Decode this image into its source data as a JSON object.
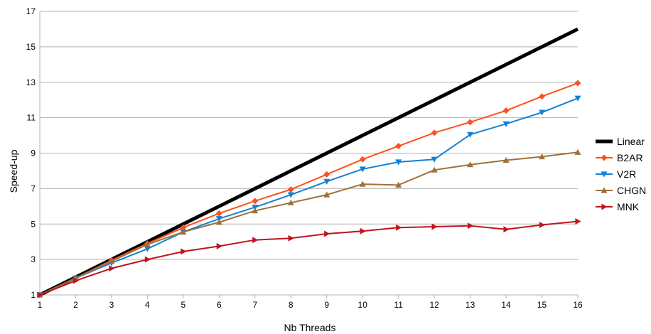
{
  "chart_data": {
    "type": "line",
    "title": "",
    "xlabel": "Nb Threads",
    "ylabel": "Speed-up",
    "x": [
      1,
      2,
      3,
      4,
      5,
      6,
      7,
      8,
      9,
      10,
      11,
      12,
      13,
      14,
      15,
      16
    ],
    "xlim": [
      1,
      16
    ],
    "ylim": [
      1,
      17
    ],
    "yticks": [
      1,
      3,
      5,
      7,
      9,
      11,
      13,
      15,
      17
    ],
    "grid": "horizontal",
    "legend_position": "right",
    "series": [
      {
        "name": "Linear",
        "color": "#000000",
        "marker": "none",
        "values": [
          1,
          2,
          3,
          4,
          5,
          6,
          7,
          8,
          9,
          10,
          11,
          12,
          13,
          14,
          15,
          16
        ]
      },
      {
        "name": "B2AR",
        "color": "#ff4f1f",
        "marker": "diamond",
        "values": [
          1,
          1.95,
          2.95,
          3.9,
          4.8,
          5.6,
          6.3,
          6.95,
          7.8,
          8.65,
          9.4,
          10.15,
          10.75,
          11.4,
          12.2,
          12.95
        ]
      },
      {
        "name": "V2R",
        "color": "#1281d6",
        "marker": "triangle-down",
        "values": [
          1,
          1.95,
          2.8,
          3.6,
          4.55,
          5.3,
          5.95,
          6.65,
          7.4,
          8.1,
          8.5,
          8.65,
          10.05,
          10.65,
          11.3,
          12.1
        ]
      },
      {
        "name": "CHGN",
        "color": "#a0703a",
        "marker": "triangle-up",
        "values": [
          1,
          1.95,
          2.9,
          3.85,
          4.55,
          5.1,
          5.75,
          6.2,
          6.65,
          7.25,
          7.2,
          8.05,
          8.35,
          8.6,
          8.8,
          9.05
        ]
      },
      {
        "name": "MNK",
        "color": "#c0141d",
        "marker": "triangle-right",
        "values": [
          1,
          1.8,
          2.5,
          3.0,
          3.45,
          3.75,
          4.1,
          4.2,
          4.45,
          4.6,
          4.8,
          4.85,
          4.9,
          4.7,
          4.95,
          5.15
        ]
      }
    ]
  }
}
